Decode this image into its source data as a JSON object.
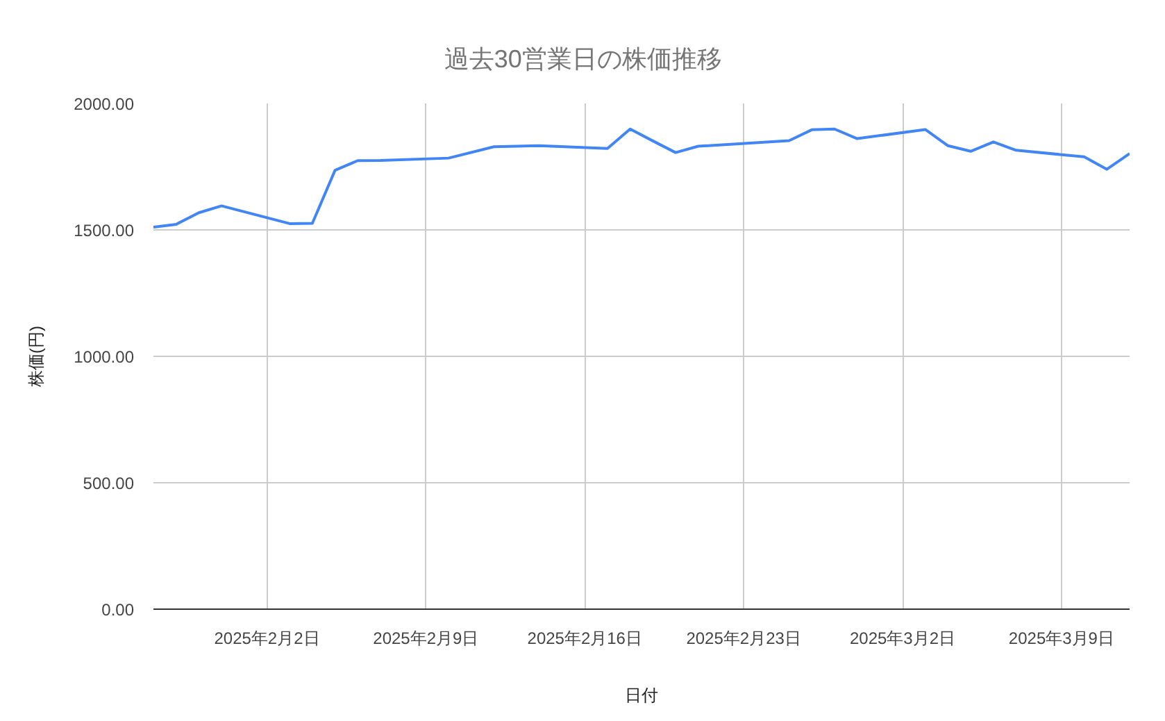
{
  "chart_data": {
    "type": "line",
    "title": "過去30営業日の株価推移",
    "xlabel": "日付",
    "ylabel": "株価(円)",
    "x": [
      "2025-01-28",
      "2025-01-29",
      "2025-01-30",
      "2025-01-31",
      "2025-02-03",
      "2025-02-04",
      "2025-02-05",
      "2025-02-06",
      "2025-02-07",
      "2025-02-10",
      "2025-02-12",
      "2025-02-13",
      "2025-02-14",
      "2025-02-17",
      "2025-02-18",
      "2025-02-19",
      "2025-02-20",
      "2025-02-21",
      "2025-02-25",
      "2025-02-26",
      "2025-02-27",
      "2025-02-28",
      "2025-03-03",
      "2025-03-04",
      "2025-03-05",
      "2025-03-06",
      "2025-03-07",
      "2025-03-10",
      "2025-03-11",
      "2025-03-12"
    ],
    "series": [
      {
        "color": "#4285f4",
        "values": [
          1511,
          1522,
          1568,
          1595,
          1525,
          1526,
          1736,
          1774,
          1775,
          1784,
          1829,
          1831,
          1833,
          1822,
          1899,
          1852,
          1806,
          1831,
          1853,
          1896,
          1899,
          1861,
          1897,
          1833,
          1811,
          1848,
          1815,
          1789,
          1740,
          1802
        ]
      }
    ],
    "xlim": [
      "2025-01-28",
      "2025-03-12"
    ],
    "xticks": [
      {
        "value": "2025-02-02",
        "label": "2025年2月2日"
      },
      {
        "value": "2025-02-09",
        "label": "2025年2月9日"
      },
      {
        "value": "2025-02-16",
        "label": "2025年2月16日"
      },
      {
        "value": "2025-02-23",
        "label": "2025年2月23日"
      },
      {
        "value": "2025-03-02",
        "label": "2025年3月2日"
      },
      {
        "value": "2025-03-09",
        "label": "2025年3月9日"
      }
    ],
    "ylim": [
      0,
      2000
    ],
    "yticks": [
      {
        "value": 0,
        "label": "0.00"
      },
      {
        "value": 500,
        "label": "500.00"
      },
      {
        "value": 1000,
        "label": "1000.00"
      },
      {
        "value": 1500,
        "label": "1500.00"
      },
      {
        "value": 2000,
        "label": "2000.00"
      }
    ],
    "grid": true,
    "line_style": "solid"
  }
}
